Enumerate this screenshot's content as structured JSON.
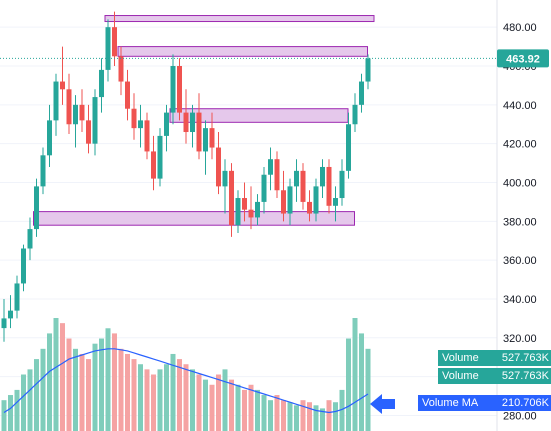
{
  "chart_data": {
    "type": "candlestick",
    "title": "",
    "xlabel": "",
    "ylabel": "",
    "ylim": [
      272,
      494
    ],
    "y_ticks": [
      "280.00",
      "300.00",
      "320.00",
      "340.00",
      "360.00",
      "380.00",
      "400.00",
      "420.00",
      "440.00",
      "460.00",
      "480.00"
    ],
    "last_price": "463.92",
    "colors": {
      "up": "#26a69a",
      "down": "#ef5350",
      "zone_fill": "#e1bee7",
      "zone_border": "#9c27b0",
      "ma_line": "#2962ff",
      "last_line": "#26a69a"
    },
    "candles": [
      {
        "o": 325,
        "h": 340,
        "l": 318,
        "c": 330
      },
      {
        "o": 330,
        "h": 342,
        "l": 325,
        "c": 334
      },
      {
        "o": 334,
        "h": 352,
        "l": 330,
        "c": 348
      },
      {
        "o": 348,
        "h": 368,
        "l": 344,
        "c": 366
      },
      {
        "o": 366,
        "h": 382,
        "l": 360,
        "c": 376
      },
      {
        "o": 376,
        "h": 402,
        "l": 372,
        "c": 398
      },
      {
        "o": 398,
        "h": 418,
        "l": 394,
        "c": 414
      },
      {
        "o": 414,
        "h": 440,
        "l": 408,
        "c": 432
      },
      {
        "o": 432,
        "h": 456,
        "l": 424,
        "c": 452
      },
      {
        "o": 452,
        "h": 470,
        "l": 440,
        "c": 448
      },
      {
        "o": 448,
        "h": 456,
        "l": 425,
        "c": 430
      },
      {
        "o": 430,
        "h": 445,
        "l": 418,
        "c": 440
      },
      {
        "o": 440,
        "h": 448,
        "l": 426,
        "c": 432
      },
      {
        "o": 432,
        "h": 440,
        "l": 415,
        "c": 420
      },
      {
        "o": 420,
        "h": 448,
        "l": 414,
        "c": 444
      },
      {
        "o": 444,
        "h": 464,
        "l": 436,
        "c": 458
      },
      {
        "o": 458,
        "h": 484,
        "l": 452,
        "c": 480
      },
      {
        "o": 480,
        "h": 488,
        "l": 460,
        "c": 465
      },
      {
        "o": 465,
        "h": 470,
        "l": 445,
        "c": 452
      },
      {
        "o": 452,
        "h": 458,
        "l": 432,
        "c": 438
      },
      {
        "o": 438,
        "h": 446,
        "l": 422,
        "c": 428
      },
      {
        "o": 428,
        "h": 440,
        "l": 418,
        "c": 432
      },
      {
        "o": 432,
        "h": 436,
        "l": 412,
        "c": 416
      },
      {
        "o": 416,
        "h": 424,
        "l": 396,
        "c": 402
      },
      {
        "o": 402,
        "h": 428,
        "l": 398,
        "c": 424
      },
      {
        "o": 424,
        "h": 440,
        "l": 416,
        "c": 436
      },
      {
        "o": 436,
        "h": 466,
        "l": 430,
        "c": 460
      },
      {
        "o": 460,
        "h": 464,
        "l": 432,
        "c": 436
      },
      {
        "o": 436,
        "h": 448,
        "l": 420,
        "c": 426
      },
      {
        "o": 426,
        "h": 440,
        "l": 418,
        "c": 436
      },
      {
        "o": 436,
        "h": 446,
        "l": 412,
        "c": 416
      },
      {
        "o": 416,
        "h": 432,
        "l": 404,
        "c": 428
      },
      {
        "o": 428,
        "h": 436,
        "l": 412,
        "c": 418
      },
      {
        "o": 418,
        "h": 426,
        "l": 394,
        "c": 398
      },
      {
        "o": 398,
        "h": 412,
        "l": 384,
        "c": 406
      },
      {
        "o": 406,
        "h": 410,
        "l": 372,
        "c": 378
      },
      {
        "o": 378,
        "h": 396,
        "l": 374,
        "c": 392
      },
      {
        "o": 392,
        "h": 400,
        "l": 380,
        "c": 386
      },
      {
        "o": 386,
        "h": 398,
        "l": 376,
        "c": 382
      },
      {
        "o": 382,
        "h": 394,
        "l": 378,
        "c": 390
      },
      {
        "o": 390,
        "h": 408,
        "l": 384,
        "c": 404
      },
      {
        "o": 404,
        "h": 418,
        "l": 396,
        "c": 412
      },
      {
        "o": 412,
        "h": 416,
        "l": 392,
        "c": 396
      },
      {
        "o": 396,
        "h": 406,
        "l": 380,
        "c": 384
      },
      {
        "o": 384,
        "h": 402,
        "l": 378,
        "c": 398
      },
      {
        "o": 398,
        "h": 412,
        "l": 390,
        "c": 406
      },
      {
        "o": 406,
        "h": 410,
        "l": 386,
        "c": 390
      },
      {
        "o": 390,
        "h": 396,
        "l": 380,
        "c": 384
      },
      {
        "o": 384,
        "h": 402,
        "l": 380,
        "c": 398
      },
      {
        "o": 398,
        "h": 412,
        "l": 392,
        "c": 408
      },
      {
        "o": 408,
        "h": 412,
        "l": 384,
        "c": 388
      },
      {
        "o": 388,
        "h": 398,
        "l": 380,
        "c": 392
      },
      {
        "o": 392,
        "h": 412,
        "l": 388,
        "c": 406
      },
      {
        "o": 406,
        "h": 436,
        "l": 402,
        "c": 430
      },
      {
        "o": 430,
        "h": 446,
        "l": 426,
        "c": 440
      },
      {
        "o": 440,
        "h": 456,
        "l": 436,
        "c": 452
      },
      {
        "o": 452,
        "h": 466,
        "l": 448,
        "c": 463.92
      }
    ],
    "volume_ma": [
      18,
      22,
      28,
      34,
      40,
      46,
      52,
      58,
      62,
      66,
      70,
      72,
      74,
      76,
      78,
      79,
      80,
      80,
      79,
      78,
      76,
      74,
      72,
      70,
      68,
      66,
      64,
      62,
      60,
      58,
      56,
      54,
      52,
      50,
      48,
      46,
      44,
      42,
      40,
      38,
      36,
      34,
      32,
      30,
      28,
      26,
      24,
      22,
      20,
      19,
      18,
      19,
      21,
      24,
      28,
      32,
      36
    ],
    "volumes": [
      30,
      35,
      40,
      55,
      60,
      70,
      80,
      95,
      110,
      105,
      90,
      80,
      75,
      70,
      85,
      90,
      100,
      95,
      80,
      75,
      70,
      65,
      60,
      55,
      60,
      65,
      75,
      70,
      65,
      60,
      55,
      50,
      45,
      55,
      60,
      50,
      45,
      40,
      45,
      40,
      35,
      30,
      35,
      30,
      28,
      25,
      30,
      28,
      25,
      22,
      30,
      28,
      40,
      90,
      110,
      95,
      80
    ],
    "zones": [
      {
        "name": "zone-top",
        "y_low": 483,
        "y_high": 486,
        "start": 16,
        "end": 56
      },
      {
        "name": "zone-upper",
        "y_low": 465,
        "y_high": 470,
        "start": 18,
        "end": 55
      },
      {
        "name": "zone-middle",
        "y_low": 431,
        "y_high": 438,
        "start": 26,
        "end": 52
      },
      {
        "name": "zone-lower",
        "y_low": 378,
        "y_high": 385,
        "start": 5,
        "end": 53
      }
    ]
  },
  "labels": {
    "volume_1": {
      "key": "Volume",
      "value": "527.763K"
    },
    "volume_2": {
      "key": "Volume",
      "value": "527.763K"
    },
    "volume_ma": {
      "key": "Volume MA",
      "value": "210.706K"
    }
  }
}
